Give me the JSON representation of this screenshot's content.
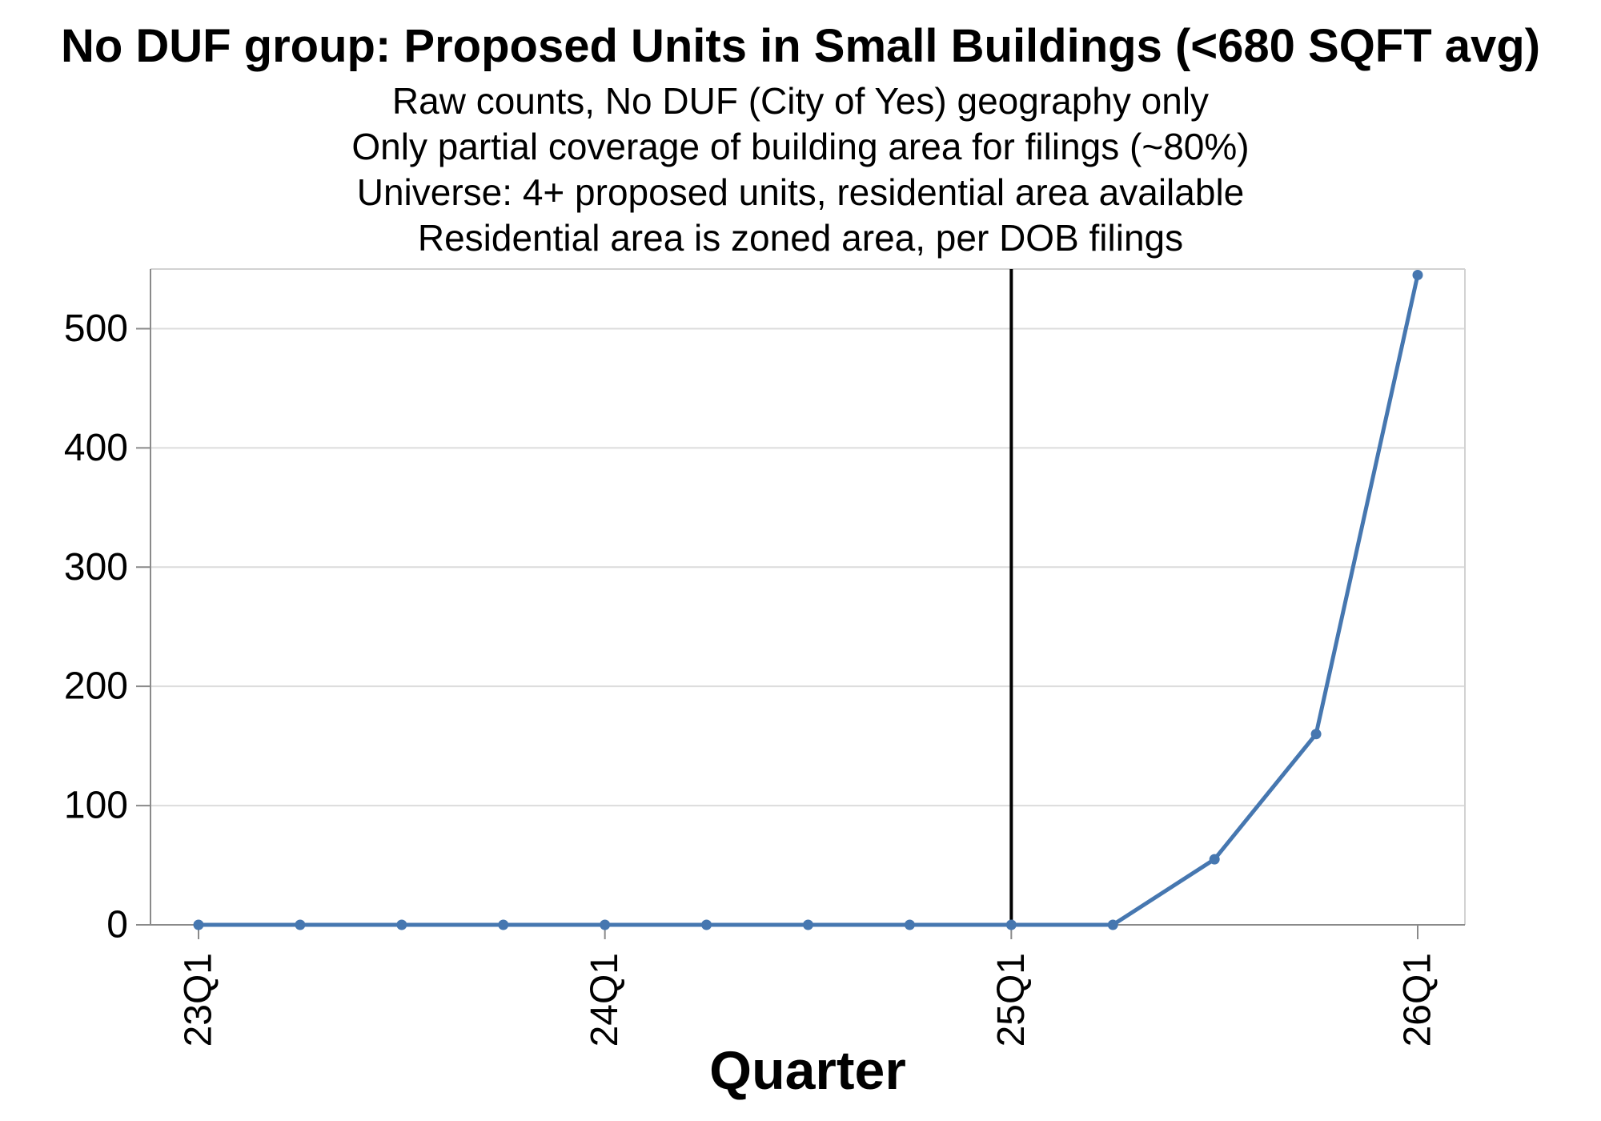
{
  "chart_data": {
    "type": "line",
    "title": "No DUF group: Proposed Units in Small Buildings (<680 SQFT avg)",
    "subtitle_lines": [
      "Raw counts, No DUF (City of Yes) geography only",
      "Only partial coverage of building area for filings (~80%)",
      "Universe: 4+ proposed units, residential area available",
      "Residential area is zoned area, per DOB filings"
    ],
    "xlabel": "Quarter",
    "ylabel": "",
    "categories": [
      "23Q1",
      "23Q2",
      "23Q3",
      "23Q4",
      "24Q1",
      "24Q2",
      "24Q3",
      "24Q4",
      "25Q1",
      "25Q2",
      "25Q3",
      "25Q4",
      "26Q1"
    ],
    "values": [
      0,
      0,
      0,
      0,
      0,
      0,
      0,
      0,
      0,
      0,
      55,
      160,
      545
    ],
    "ylim": [
      0,
      550
    ],
    "y_ticks": [
      0,
      100,
      200,
      300,
      400,
      500
    ],
    "x_tick_labels": [
      "23Q1",
      "24Q1",
      "25Q1",
      "26Q1"
    ],
    "x_tick_indices": [
      0,
      4,
      8,
      12
    ],
    "x_tick_label_rotation": -90,
    "reference_line_x": "25Q1",
    "grid": "horizontal",
    "legend": "none",
    "colors": {
      "line": "#4677b0",
      "reference_line": "#000000",
      "grid": "#dcdcdc",
      "border": "#d2d2d2",
      "axis": "#8a8a8a",
      "text": "#000000",
      "background": "#ffffff"
    }
  }
}
